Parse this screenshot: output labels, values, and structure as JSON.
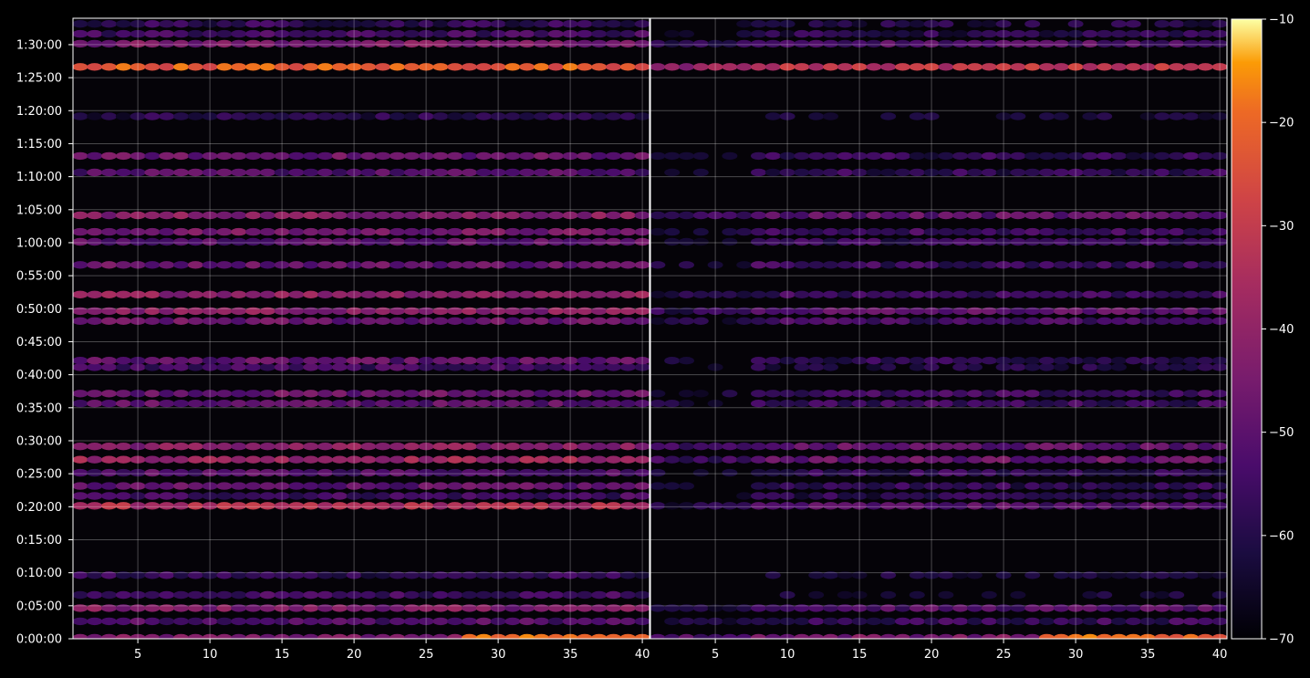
{
  "chart_data": {
    "type": "heatmap",
    "background": "#000000",
    "title": "",
    "xlabel": "",
    "ylabel": "",
    "grid": true,
    "colormap": "inferno",
    "panels": [
      {
        "name": "left",
        "x_tick_labels": [
          "5",
          "10",
          "15",
          "20",
          "25",
          "30",
          "35",
          "40"
        ],
        "x_ticks": [
          5,
          10,
          15,
          20,
          25,
          30,
          35,
          40
        ],
        "xlim": [
          1,
          40
        ]
      },
      {
        "name": "right",
        "x_tick_labels": [
          "5",
          "10",
          "15",
          "20",
          "25",
          "30",
          "35",
          "40"
        ],
        "x_ticks": [
          5,
          10,
          15,
          20,
          25,
          30,
          35,
          40
        ],
        "xlim": [
          1,
          40
        ]
      }
    ],
    "y_tick_labels": [
      "0:00:00",
      "0:05:00",
      "0:10:00",
      "0:15:00",
      "0:20:00",
      "0:25:00",
      "0:30:00",
      "0:35:00",
      "0:40:00",
      "0:45:00",
      "0:50:00",
      "0:55:00",
      "1:00:00",
      "1:05:00",
      "1:10:00",
      "1:15:00",
      "1:20:00",
      "1:25:00",
      "1:30:00"
    ],
    "ylim_seconds": [
      0,
      5640
    ],
    "colorbar": {
      "ticks": [
        -10,
        -20,
        -30,
        -40,
        -50,
        -60,
        -70
      ],
      "tick_labels": [
        "−10",
        "−20",
        "−30",
        "−40",
        "−50",
        "−60",
        "−70"
      ],
      "range": [
        -70,
        -10
      ]
    },
    "bands": [
      {
        "t": 0,
        "left": -45,
        "right": -45,
        "x_from": 28,
        "peak": -22
      },
      {
        "t": 150,
        "left": -52,
        "right": -56
      },
      {
        "t": 270,
        "left": -44,
        "right": -52
      },
      {
        "t": 390,
        "left": -55,
        "right": -65
      },
      {
        "t": 570,
        "left": -58,
        "right": -64
      },
      {
        "t": 1200,
        "left": -35,
        "right": -52
      },
      {
        "t": 1290,
        "left": -55,
        "right": -60
      },
      {
        "t": 1380,
        "left": -50,
        "right": -58
      },
      {
        "t": 1500,
        "left": -52,
        "right": -58
      },
      {
        "t": 1620,
        "left": -38,
        "right": -48
      },
      {
        "t": 1740,
        "left": -42,
        "right": -50
      },
      {
        "t": 2130,
        "left": -50,
        "right": -56
      },
      {
        "t": 2220,
        "left": -48,
        "right": -56
      },
      {
        "t": 2460,
        "left": -55,
        "right": -62
      },
      {
        "t": 2520,
        "left": -50,
        "right": -58
      },
      {
        "t": 2880,
        "left": -48,
        "right": -55
      },
      {
        "t": 2970,
        "left": -42,
        "right": -50
      },
      {
        "t": 3120,
        "left": -40,
        "right": -55
      },
      {
        "t": 3390,
        "left": -48,
        "right": -56
      },
      {
        "t": 3600,
        "left": -50,
        "right": -57
      },
      {
        "t": 3690,
        "left": -46,
        "right": -55
      },
      {
        "t": 3840,
        "left": -42,
        "right": -50
      },
      {
        "t": 4230,
        "left": -52,
        "right": -58
      },
      {
        "t": 4380,
        "left": -48,
        "right": -58
      },
      {
        "t": 4740,
        "left": -60,
        "right": -65
      },
      {
        "t": 5190,
        "left": -22,
        "right": -32
      },
      {
        "t": 5400,
        "left": -45,
        "right": -52
      },
      {
        "t": 5490,
        "left": -55,
        "right": -60
      },
      {
        "t": 5580,
        "left": -58,
        "right": -62
      }
    ]
  }
}
